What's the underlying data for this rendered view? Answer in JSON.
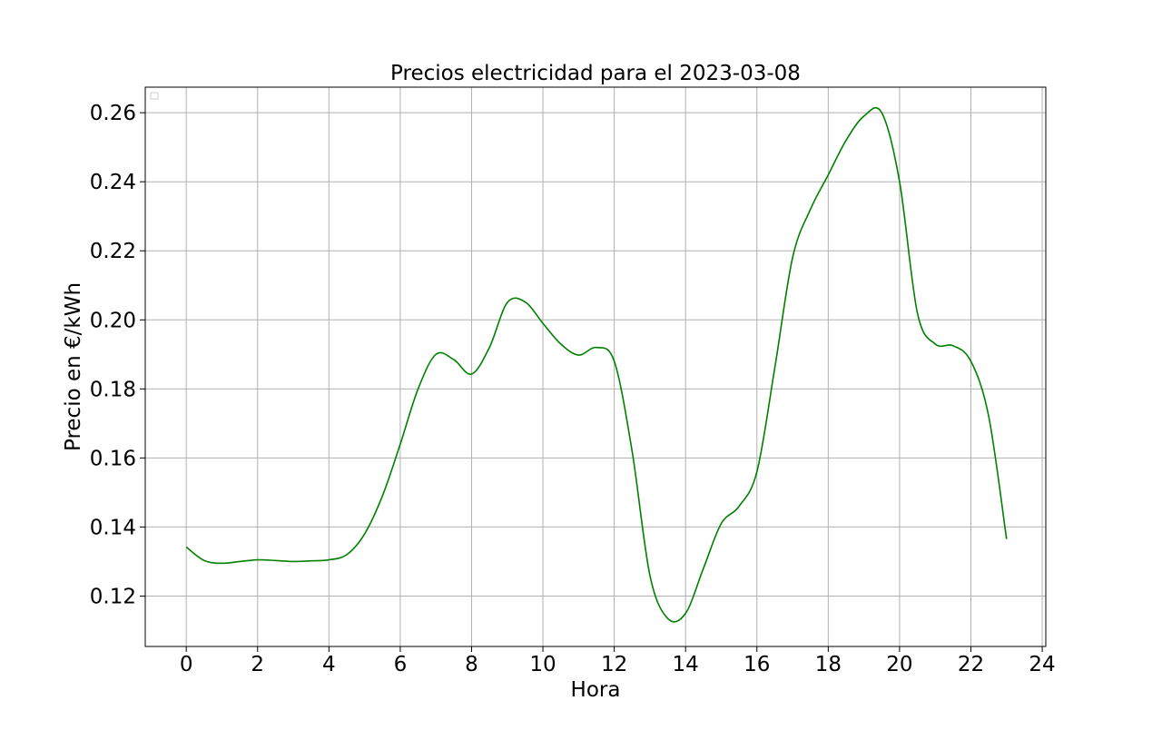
{
  "chart_data": {
    "type": "line",
    "title": "Precios electricidad para el 2023-03-08",
    "xlabel": "Hora",
    "ylabel": "Precio en €/kWh",
    "xlim": [
      -1.15,
      24.1
    ],
    "ylim": [
      0.1054,
      0.2674
    ],
    "xticks": [
      0,
      2,
      4,
      6,
      8,
      10,
      12,
      14,
      16,
      18,
      20,
      22,
      24
    ],
    "xtick_labels": [
      "0",
      "2",
      "4",
      "6",
      "8",
      "10",
      "12",
      "14",
      "16",
      "18",
      "20",
      "22",
      "24"
    ],
    "yticks": [
      0.12,
      0.14,
      0.16,
      0.18,
      0.2,
      0.22,
      0.24,
      0.26
    ],
    "ytick_labels": [
      "0.12",
      "0.14",
      "0.16",
      "0.18",
      "0.20",
      "0.22",
      "0.24",
      "0.26"
    ],
    "grid": true,
    "legend": "top-left",
    "series": [
      {
        "color": "#008000",
        "x": [
          0,
          0.5,
          1,
          1.5,
          2,
          2.5,
          3,
          3.5,
          4,
          4.5,
          5,
          5.5,
          6,
          6.5,
          7,
          7.5,
          8,
          8.5,
          9,
          9.5,
          10,
          10.5,
          11,
          11.5,
          12,
          12.5,
          13,
          13.5,
          14,
          14.5,
          15,
          15.5,
          16,
          16.5,
          17,
          17.5,
          18,
          18.5,
          19,
          19.5,
          20,
          20.5,
          21,
          21.5,
          22,
          22.5,
          23
        ],
        "y": [
          0.1342,
          0.1303,
          0.1295,
          0.13,
          0.1305,
          0.1303,
          0.13,
          0.1302,
          0.1305,
          0.132,
          0.138,
          0.149,
          0.164,
          0.18,
          0.19,
          0.1885,
          0.1843,
          0.192,
          0.205,
          0.2052,
          0.199,
          0.193,
          0.1898,
          0.192,
          0.188,
          0.162,
          0.126,
          0.1135,
          0.115,
          0.128,
          0.141,
          0.146,
          0.156,
          0.186,
          0.218,
          0.232,
          0.242,
          0.252,
          0.259,
          0.26,
          0.24,
          0.202,
          0.193,
          0.1925,
          0.188,
          0.172,
          0.1365
        ]
      }
    ]
  }
}
